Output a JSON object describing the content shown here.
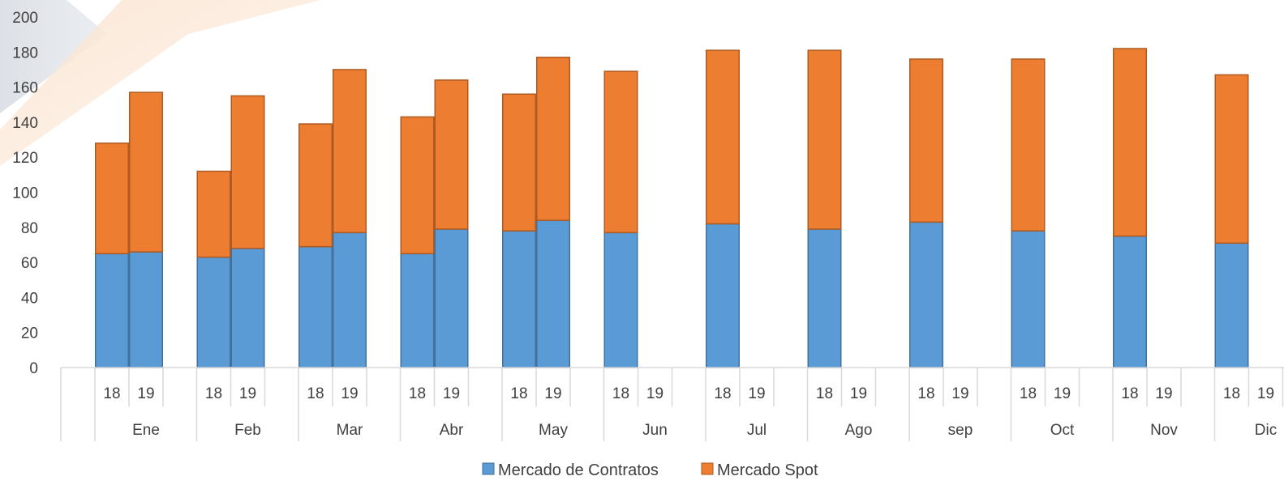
{
  "chart_data": {
    "type": "bar",
    "stacked": true,
    "ylim": [
      0,
      200
    ],
    "yticks": [
      0,
      20,
      40,
      60,
      80,
      100,
      120,
      140,
      160,
      180,
      200
    ],
    "grid": false,
    "legend_position": "bottom",
    "months": [
      "Ene",
      "Feb",
      "Mar",
      "Abr",
      "May",
      "Jun",
      "Jul",
      "Ago",
      "sep",
      "Oct",
      "Nov",
      "Dic"
    ],
    "years": [
      "18",
      "19"
    ],
    "series": [
      {
        "name": "Mercado de Contratos",
        "color": "#5b9bd5",
        "values_18": [
          65,
          63,
          69,
          65,
          78,
          77,
          82,
          79,
          83,
          78,
          75,
          71
        ],
        "values_19": [
          66,
          68,
          77,
          79,
          84,
          null,
          null,
          null,
          null,
          null,
          null,
          null
        ]
      },
      {
        "name": "Mercado Spot",
        "color": "#ed7d31",
        "values_18": [
          63,
          49,
          70,
          78,
          78,
          92,
          99,
          102,
          93,
          98,
          107,
          96
        ],
        "values_19": [
          91,
          87,
          93,
          85,
          93,
          null,
          null,
          null,
          null,
          null,
          null,
          null
        ]
      }
    ]
  }
}
